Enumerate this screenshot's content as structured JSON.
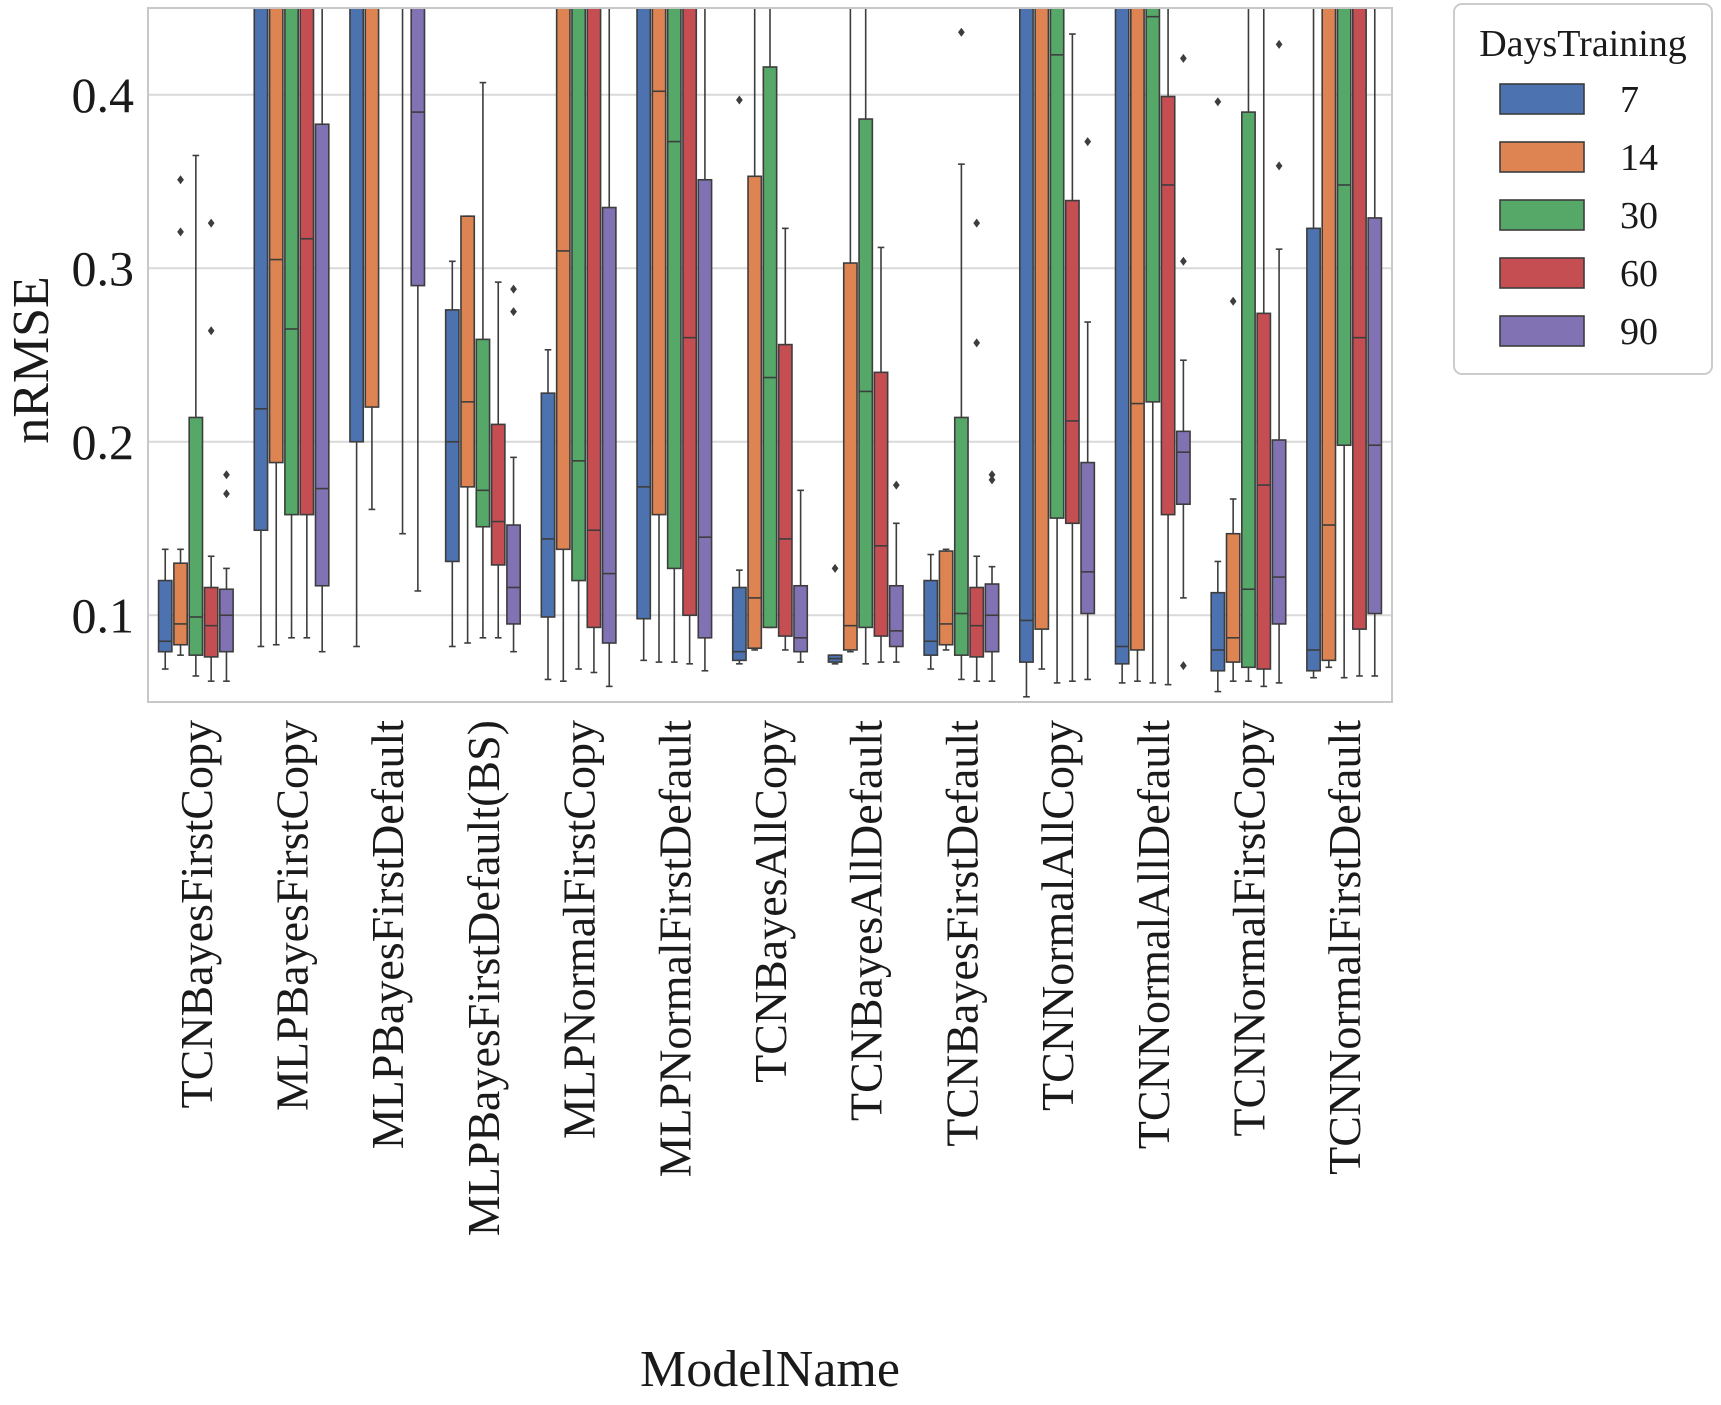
{
  "chart_data": {
    "type": "boxplot",
    "xlabel": "ModelName",
    "ylabel": "nRMSE",
    "ylim": [
      0.05,
      0.45
    ],
    "yticks": [
      "0.1",
      "0.2",
      "0.3",
      "0.4"
    ],
    "grid": true,
    "legend": {
      "title": "DaysTraining",
      "placement": "outside-top-right"
    },
    "categories": [
      "TCNBayesFirstCopy",
      "MLPBayesFirstCopy",
      "MLPBayesFirstDefault",
      "MLPBayesFirstDefault(BS)",
      "MLPNormalFirstCopy",
      "MLPNormalFirstDefault",
      "TCNBayesAllCopy",
      "TCNBayesAllDefault",
      "TCNBayesFirstDefault",
      "TCNNormalAllCopy",
      "TCNNormalAllDefault",
      "TCNNormalFirstCopy",
      "TCNNormalFirstDefault"
    ],
    "series": [
      {
        "name": "7",
        "color": "#4c72b0",
        "boxes": [
          {
            "whislo": 0.069,
            "q1": 0.079,
            "med": 0.085,
            "q3": 0.12,
            "whishi": 0.138,
            "fliers": []
          },
          {
            "whislo": 0.082,
            "q1": 0.149,
            "med": 0.219,
            "q3": 0.5,
            "whishi": 0.5,
            "fliers": []
          },
          {
            "whislo": 0.082,
            "q1": 0.2,
            "med": 0.46,
            "q3": 0.5,
            "whishi": 0.5,
            "fliers": []
          },
          {
            "whislo": 0.082,
            "q1": 0.131,
            "med": 0.2,
            "q3": 0.276,
            "whishi": 0.304,
            "fliers": []
          },
          {
            "whislo": 0.063,
            "q1": 0.099,
            "med": 0.144,
            "q3": 0.228,
            "whishi": 0.253,
            "fliers": []
          },
          {
            "whislo": 0.074,
            "q1": 0.098,
            "med": 0.174,
            "q3": 0.5,
            "whishi": 0.5,
            "fliers": []
          },
          {
            "whislo": 0.072,
            "q1": 0.074,
            "med": 0.079,
            "q3": 0.116,
            "whishi": 0.126,
            "fliers": [
              0.397
            ]
          },
          {
            "whislo": 0.072,
            "q1": 0.073,
            "med": 0.075,
            "q3": 0.077,
            "whishi": 0.077,
            "fliers": [
              0.127
            ]
          },
          {
            "whislo": 0.069,
            "q1": 0.077,
            "med": 0.085,
            "q3": 0.12,
            "whishi": 0.135,
            "fliers": []
          },
          {
            "whislo": 0.053,
            "q1": 0.073,
            "med": 0.097,
            "q3": 0.5,
            "whishi": 0.5,
            "fliers": []
          },
          {
            "whislo": 0.061,
            "q1": 0.072,
            "med": 0.082,
            "q3": 0.5,
            "whishi": 0.5,
            "fliers": []
          },
          {
            "whislo": 0.056,
            "q1": 0.068,
            "med": 0.08,
            "q3": 0.113,
            "whishi": 0.131,
            "fliers": [
              0.396
            ]
          },
          {
            "whislo": 0.064,
            "q1": 0.068,
            "med": 0.08,
            "q3": 0.323,
            "whishi": 0.5,
            "fliers": []
          }
        ]
      },
      {
        "name": "14",
        "color": "#dd8452",
        "boxes": [
          {
            "whislo": 0.077,
            "q1": 0.083,
            "med": 0.095,
            "q3": 0.13,
            "whishi": 0.138,
            "fliers": [
              0.321,
              0.351
            ]
          },
          {
            "whislo": 0.083,
            "q1": 0.188,
            "med": 0.305,
            "q3": 0.5,
            "whishi": 0.5,
            "fliers": []
          },
          {
            "whislo": 0.161,
            "q1": 0.22,
            "med": 0.46,
            "q3": 0.5,
            "whishi": 0.5,
            "fliers": []
          },
          {
            "whislo": 0.084,
            "q1": 0.174,
            "med": 0.223,
            "q3": 0.33,
            "whishi": 0.33,
            "fliers": []
          },
          {
            "whislo": 0.062,
            "q1": 0.138,
            "med": 0.31,
            "q3": 0.5,
            "whishi": 0.5,
            "fliers": []
          },
          {
            "whislo": 0.073,
            "q1": 0.158,
            "med": 0.402,
            "q3": 0.5,
            "whishi": 0.5,
            "fliers": []
          },
          {
            "whislo": 0.08,
            "q1": 0.081,
            "med": 0.11,
            "q3": 0.353,
            "whishi": 0.5,
            "fliers": []
          },
          {
            "whislo": 0.079,
            "q1": 0.08,
            "med": 0.094,
            "q3": 0.303,
            "whishi": 0.5,
            "fliers": []
          },
          {
            "whislo": 0.08,
            "q1": 0.083,
            "med": 0.095,
            "q3": 0.137,
            "whishi": 0.138,
            "fliers": []
          },
          {
            "whislo": 0.069,
            "q1": 0.092,
            "med": 0.46,
            "q3": 0.5,
            "whishi": 0.5,
            "fliers": []
          },
          {
            "whislo": 0.062,
            "q1": 0.08,
            "med": 0.222,
            "q3": 0.5,
            "whishi": 0.5,
            "fliers": []
          },
          {
            "whislo": 0.062,
            "q1": 0.073,
            "med": 0.087,
            "q3": 0.147,
            "whishi": 0.167,
            "fliers": [
              0.281
            ]
          },
          {
            "whislo": 0.07,
            "q1": 0.074,
            "med": 0.152,
            "q3": 0.5,
            "whishi": 0.5,
            "fliers": []
          }
        ]
      },
      {
        "name": "30",
        "color": "#55a868",
        "boxes": [
          {
            "whislo": 0.065,
            "q1": 0.077,
            "med": 0.099,
            "q3": 0.214,
            "whishi": 0.365,
            "fliers": []
          },
          {
            "whislo": 0.087,
            "q1": 0.158,
            "med": 0.265,
            "q3": 0.5,
            "whishi": 0.5,
            "fliers": []
          },
          {
            "whislo": 0,
            "q1": 0,
            "med": 0,
            "q3": 0,
            "whishi": 0,
            "fliers": [],
            "empty": true
          },
          {
            "whislo": 0.087,
            "q1": 0.151,
            "med": 0.172,
            "q3": 0.259,
            "whishi": 0.407,
            "fliers": []
          },
          {
            "whislo": 0.069,
            "q1": 0.12,
            "med": 0.189,
            "q3": 0.5,
            "whishi": 0.5,
            "fliers": []
          },
          {
            "whislo": 0.073,
            "q1": 0.127,
            "med": 0.373,
            "q3": 0.5,
            "whishi": 0.5,
            "fliers": []
          },
          {
            "whislo": 0.093,
            "q1": 0.093,
            "med": 0.237,
            "q3": 0.416,
            "whishi": 0.5,
            "fliers": []
          },
          {
            "whislo": 0.072,
            "q1": 0.093,
            "med": 0.229,
            "q3": 0.386,
            "whishi": 0.5,
            "fliers": []
          },
          {
            "whislo": 0.063,
            "q1": 0.077,
            "med": 0.101,
            "q3": 0.214,
            "whishi": 0.36,
            "fliers": [
              0.436
            ]
          },
          {
            "whislo": 0.061,
            "q1": 0.156,
            "med": 0.423,
            "q3": 0.5,
            "whishi": 0.5,
            "fliers": []
          },
          {
            "whislo": 0.061,
            "q1": 0.223,
            "med": 0.445,
            "q3": 0.5,
            "whishi": 0.5,
            "fliers": []
          },
          {
            "whislo": 0.062,
            "q1": 0.07,
            "med": 0.115,
            "q3": 0.39,
            "whishi": 0.5,
            "fliers": []
          },
          {
            "whislo": 0.064,
            "q1": 0.198,
            "med": 0.348,
            "q3": 0.5,
            "whishi": 0.5,
            "fliers": []
          }
        ]
      },
      {
        "name": "60",
        "color": "#c44e52",
        "boxes": [
          {
            "whislo": 0.062,
            "q1": 0.076,
            "med": 0.094,
            "q3": 0.116,
            "whishi": 0.134,
            "fliers": [
              0.264,
              0.326
            ]
          },
          {
            "whislo": 0.087,
            "q1": 0.158,
            "med": 0.317,
            "q3": 0.5,
            "whishi": 0.5,
            "fliers": []
          },
          {
            "whislo": 0.147,
            "q1": 0.5,
            "med": 0.5,
            "q3": 0.5,
            "whishi": 0.5,
            "fliers": []
          },
          {
            "whislo": 0.087,
            "q1": 0.129,
            "med": 0.154,
            "q3": 0.21,
            "whishi": 0.292,
            "fliers": []
          },
          {
            "whislo": 0.067,
            "q1": 0.093,
            "med": 0.149,
            "q3": 0.5,
            "whishi": 0.5,
            "fliers": []
          },
          {
            "whislo": 0.072,
            "q1": 0.1,
            "med": 0.26,
            "q3": 0.5,
            "whishi": 0.5,
            "fliers": []
          },
          {
            "whislo": 0.08,
            "q1": 0.088,
            "med": 0.144,
            "q3": 0.256,
            "whishi": 0.323,
            "fliers": []
          },
          {
            "whislo": 0.073,
            "q1": 0.088,
            "med": 0.14,
            "q3": 0.24,
            "whishi": 0.312,
            "fliers": []
          },
          {
            "whislo": 0.062,
            "q1": 0.076,
            "med": 0.094,
            "q3": 0.116,
            "whishi": 0.134,
            "fliers": [
              0.257,
              0.326
            ]
          },
          {
            "whislo": 0.062,
            "q1": 0.153,
            "med": 0.212,
            "q3": 0.339,
            "whishi": 0.435,
            "fliers": []
          },
          {
            "whislo": 0.06,
            "q1": 0.158,
            "med": 0.348,
            "q3": 0.399,
            "whishi": 0.5,
            "fliers": []
          },
          {
            "whislo": 0.059,
            "q1": 0.069,
            "med": 0.175,
            "q3": 0.274,
            "whishi": 0.5,
            "fliers": []
          },
          {
            "whislo": 0.065,
            "q1": 0.092,
            "med": 0.26,
            "q3": 0.5,
            "whishi": 0.5,
            "fliers": []
          }
        ]
      },
      {
        "name": "90",
        "color": "#8172b3",
        "boxes": [
          {
            "whislo": 0.062,
            "q1": 0.079,
            "med": 0.1,
            "q3": 0.115,
            "whishi": 0.127,
            "fliers": [
              0.17,
              0.181
            ]
          },
          {
            "whislo": 0.079,
            "q1": 0.117,
            "med": 0.173,
            "q3": 0.383,
            "whishi": 0.5,
            "fliers": []
          },
          {
            "whislo": 0.114,
            "q1": 0.29,
            "med": 0.39,
            "q3": 0.5,
            "whishi": 0.5,
            "fliers": []
          },
          {
            "whislo": 0.079,
            "q1": 0.095,
            "med": 0.116,
            "q3": 0.152,
            "whishi": 0.191,
            "fliers": [
              0.275,
              0.288
            ]
          },
          {
            "whislo": 0.059,
            "q1": 0.084,
            "med": 0.124,
            "q3": 0.335,
            "whishi": 0.5,
            "fliers": []
          },
          {
            "whislo": 0.068,
            "q1": 0.087,
            "med": 0.145,
            "q3": 0.351,
            "whishi": 0.5,
            "fliers": []
          },
          {
            "whislo": 0.073,
            "q1": 0.079,
            "med": 0.087,
            "q3": 0.117,
            "whishi": 0.172,
            "fliers": []
          },
          {
            "whislo": 0.073,
            "q1": 0.082,
            "med": 0.091,
            "q3": 0.117,
            "whishi": 0.153,
            "fliers": [
              0.175
            ]
          },
          {
            "whislo": 0.062,
            "q1": 0.079,
            "med": 0.1,
            "q3": 0.118,
            "whishi": 0.128,
            "fliers": [
              0.178,
              0.181
            ]
          },
          {
            "whislo": 0.063,
            "q1": 0.101,
            "med": 0.125,
            "q3": 0.188,
            "whishi": 0.269,
            "fliers": [
              0.373
            ]
          },
          {
            "whislo": 0.11,
            "q1": 0.164,
            "med": 0.194,
            "q3": 0.206,
            "whishi": 0.247,
            "fliers": [
              0.071,
              0.304,
              0.421
            ]
          },
          {
            "whislo": 0.061,
            "q1": 0.095,
            "med": 0.122,
            "q3": 0.201,
            "whishi": 0.311,
            "fliers": [
              0.359,
              0.429
            ]
          },
          {
            "whislo": 0.065,
            "q1": 0.101,
            "med": 0.198,
            "q3": 0.329,
            "whishi": 0.5,
            "fliers": []
          }
        ]
      }
    ]
  }
}
